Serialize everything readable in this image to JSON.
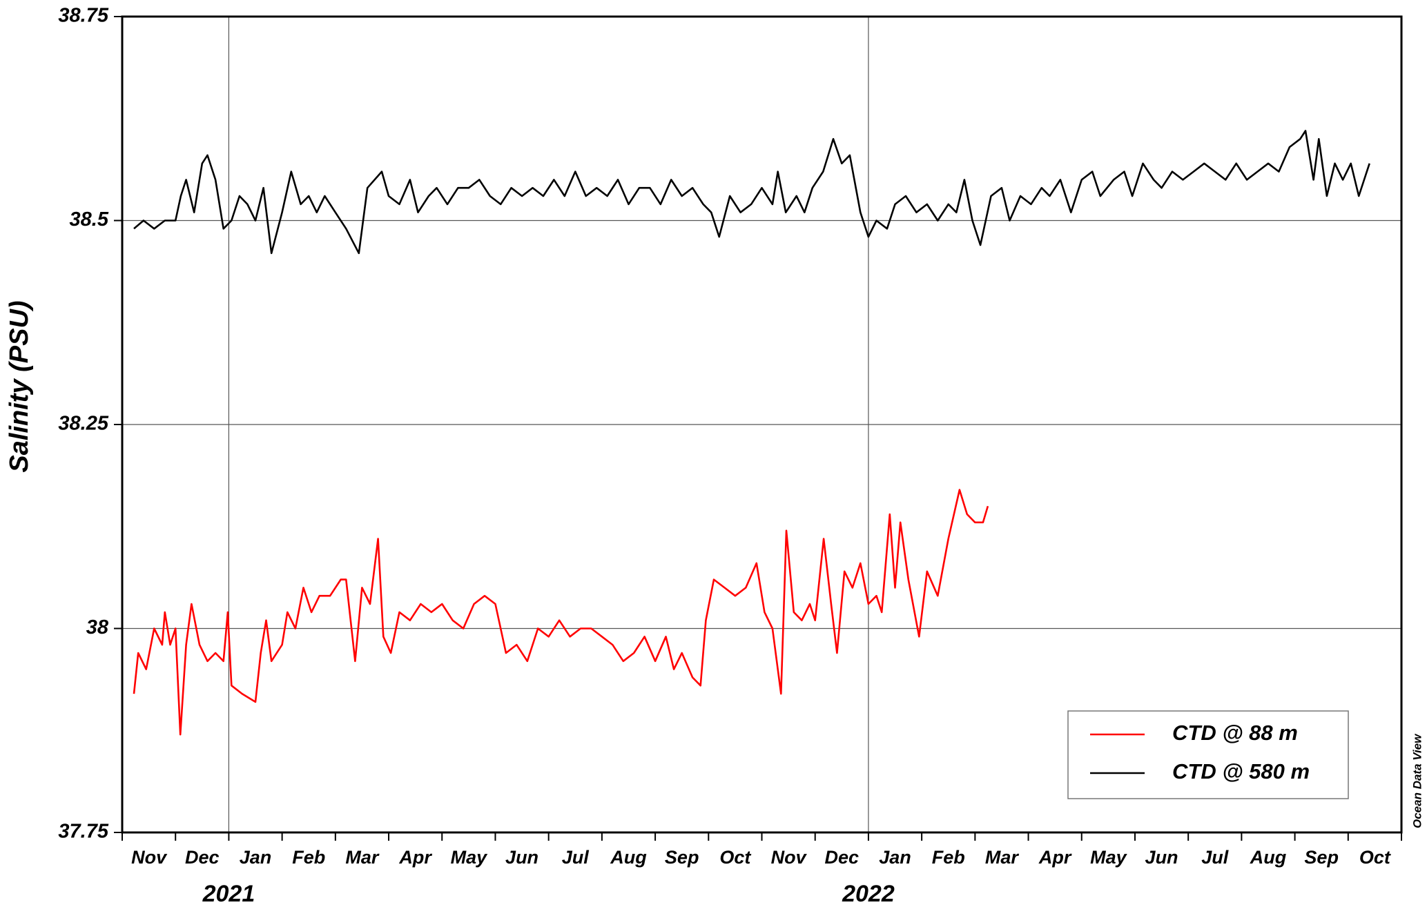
{
  "chart_data": {
    "type": "line",
    "y_label": "Salinity (PSU)",
    "watermark": "Ocean Data View",
    "xlim": [
      0,
      24
    ],
    "xticks": [
      {
        "value": 0.5,
        "label": "Nov"
      },
      {
        "value": 1.5,
        "label": "Dec"
      },
      {
        "value": 2.5,
        "label": "Jan"
      },
      {
        "value": 3.5,
        "label": "Feb"
      },
      {
        "value": 4.5,
        "label": "Mar"
      },
      {
        "value": 5.5,
        "label": "Apr"
      },
      {
        "value": 6.5,
        "label": "May"
      },
      {
        "value": 7.5,
        "label": "Jun"
      },
      {
        "value": 8.5,
        "label": "Jul"
      },
      {
        "value": 9.5,
        "label": "Aug"
      },
      {
        "value": 10.5,
        "label": "Sep"
      },
      {
        "value": 11.5,
        "label": "Oct"
      },
      {
        "value": 12.5,
        "label": "Nov"
      },
      {
        "value": 13.5,
        "label": "Dec"
      },
      {
        "value": 14.5,
        "label": "Jan"
      },
      {
        "value": 15.5,
        "label": "Feb"
      },
      {
        "value": 16.5,
        "label": "Mar"
      },
      {
        "value": 17.5,
        "label": "Apr"
      },
      {
        "value": 18.5,
        "label": "May"
      },
      {
        "value": 19.5,
        "label": "Jun"
      },
      {
        "value": 20.5,
        "label": "Jul"
      },
      {
        "value": 21.5,
        "label": "Aug"
      },
      {
        "value": 22.5,
        "label": "Sep"
      },
      {
        "value": 23.5,
        "label": "Oct"
      }
    ],
    "year_ticks": [
      {
        "value": 2,
        "label": "2021"
      },
      {
        "value": 14,
        "label": "2022"
      }
    ],
    "ylim": [
      37.75,
      38.75
    ],
    "yticks": [
      37.75,
      38,
      38.25,
      38.5,
      38.75
    ],
    "grid": true,
    "legend": "lower right",
    "series": [
      {
        "name": "CTD @ 88 m",
        "color": "#ff0000",
        "x": [
          0.22,
          0.3,
          0.45,
          0.6,
          0.75,
          0.8,
          0.9,
          1.0,
          1.09,
          1.2,
          1.3,
          1.45,
          1.6,
          1.75,
          1.9,
          1.98,
          2.05,
          2.25,
          2.5,
          2.6,
          2.7,
          2.8,
          3.0,
          3.1,
          3.25,
          3.4,
          3.55,
          3.7,
          3.9,
          4.1,
          4.2,
          4.37,
          4.5,
          4.65,
          4.8,
          4.9,
          5.04,
          5.2,
          5.4,
          5.6,
          5.8,
          6.0,
          6.2,
          6.4,
          6.6,
          6.8,
          7.0,
          7.2,
          7.4,
          7.6,
          7.8,
          8.0,
          8.2,
          8.4,
          8.6,
          8.8,
          9.0,
          9.2,
          9.4,
          9.6,
          9.8,
          10.0,
          10.2,
          10.35,
          10.5,
          10.7,
          10.85,
          10.95,
          11.1,
          11.3,
          11.5,
          11.7,
          11.9,
          12.05,
          12.2,
          12.36,
          12.46,
          12.6,
          12.75,
          12.9,
          13.0,
          13.16,
          13.3,
          13.41,
          13.55,
          13.7,
          13.85,
          14.0,
          14.15,
          14.25,
          14.4,
          14.5,
          14.6,
          14.75,
          14.95,
          15.1,
          15.3,
          15.5,
          15.71,
          15.85,
          16.0,
          16.15,
          16.24
        ],
        "values": [
          37.92,
          37.97,
          37.95,
          38.0,
          37.98,
          38.02,
          37.98,
          38.0,
          37.87,
          37.98,
          38.03,
          37.98,
          37.96,
          37.97,
          37.96,
          38.02,
          37.93,
          37.92,
          37.91,
          37.97,
          38.01,
          37.96,
          37.98,
          38.02,
          38.0,
          38.05,
          38.02,
          38.04,
          38.04,
          38.06,
          38.06,
          37.96,
          38.05,
          38.03,
          38.11,
          37.99,
          37.97,
          38.02,
          38.01,
          38.03,
          38.02,
          38.03,
          38.01,
          38.0,
          38.03,
          38.04,
          38.03,
          37.97,
          37.98,
          37.96,
          38.0,
          37.99,
          38.01,
          37.99,
          38.0,
          38.0,
          37.99,
          37.98,
          37.96,
          37.97,
          37.99,
          37.96,
          37.99,
          37.95,
          37.97,
          37.94,
          37.93,
          38.01,
          38.06,
          38.05,
          38.04,
          38.05,
          38.08,
          38.02,
          38.0,
          37.92,
          38.12,
          38.02,
          38.01,
          38.03,
          38.01,
          38.11,
          38.03,
          37.97,
          38.07,
          38.05,
          38.08,
          38.03,
          38.04,
          38.02,
          38.14,
          38.05,
          38.13,
          38.06,
          37.99,
          38.07,
          38.04,
          38.11,
          38.17,
          38.14,
          38.13,
          38.13,
          38.15
        ]
      },
      {
        "name": "CTD @ 580 m",
        "color": "#000000",
        "x": [
          0.22,
          0.4,
          0.6,
          0.8,
          1.0,
          1.1,
          1.2,
          1.35,
          1.5,
          1.6,
          1.75,
          1.9,
          2.05,
          2.2,
          2.35,
          2.5,
          2.65,
          2.8,
          3.0,
          3.17,
          3.35,
          3.5,
          3.65,
          3.8,
          4.0,
          4.2,
          4.44,
          4.6,
          4.87,
          5.0,
          5.2,
          5.4,
          5.55,
          5.75,
          5.9,
          6.1,
          6.3,
          6.5,
          6.7,
          6.9,
          7.1,
          7.3,
          7.5,
          7.7,
          7.9,
          8.1,
          8.3,
          8.5,
          8.7,
          8.9,
          9.1,
          9.3,
          9.5,
          9.7,
          9.9,
          10.1,
          10.3,
          10.5,
          10.7,
          10.9,
          11.05,
          11.2,
          11.4,
          11.6,
          11.8,
          12.0,
          12.2,
          12.3,
          12.45,
          12.65,
          12.8,
          12.95,
          13.15,
          13.34,
          13.5,
          13.65,
          13.85,
          14.0,
          14.15,
          14.35,
          14.5,
          14.7,
          14.9,
          15.1,
          15.3,
          15.5,
          15.65,
          15.8,
          15.95,
          16.1,
          16.3,
          16.5,
          16.65,
          16.85,
          17.05,
          17.25,
          17.4,
          17.6,
          17.8,
          18.0,
          18.2,
          18.35,
          18.6,
          18.8,
          18.95,
          19.15,
          19.35,
          19.5,
          19.7,
          19.9,
          20.1,
          20.3,
          20.5,
          20.7,
          20.9,
          21.1,
          21.3,
          21.5,
          21.7,
          21.9,
          22.1,
          22.2,
          22.35,
          22.45,
          22.6,
          22.75,
          22.9,
          23.05,
          23.2,
          23.4
        ],
        "values": [
          38.49,
          38.5,
          38.49,
          38.5,
          38.5,
          38.53,
          38.55,
          38.51,
          38.57,
          38.58,
          38.55,
          38.49,
          38.5,
          38.53,
          38.52,
          38.5,
          38.54,
          38.46,
          38.51,
          38.56,
          38.52,
          38.53,
          38.51,
          38.53,
          38.51,
          38.49,
          38.46,
          38.54,
          38.56,
          38.53,
          38.52,
          38.55,
          38.51,
          38.53,
          38.54,
          38.52,
          38.54,
          38.54,
          38.55,
          38.53,
          38.52,
          38.54,
          38.53,
          38.54,
          38.53,
          38.55,
          38.53,
          38.56,
          38.53,
          38.54,
          38.53,
          38.55,
          38.52,
          38.54,
          38.54,
          38.52,
          38.55,
          38.53,
          38.54,
          38.52,
          38.51,
          38.48,
          38.53,
          38.51,
          38.52,
          38.54,
          38.52,
          38.56,
          38.51,
          38.53,
          38.51,
          38.54,
          38.56,
          38.6,
          38.57,
          38.58,
          38.51,
          38.48,
          38.5,
          38.49,
          38.52,
          38.53,
          38.51,
          38.52,
          38.5,
          38.52,
          38.51,
          38.55,
          38.5,
          38.47,
          38.53,
          38.54,
          38.5,
          38.53,
          38.52,
          38.54,
          38.53,
          38.55,
          38.51,
          38.55,
          38.56,
          38.53,
          38.55,
          38.56,
          38.53,
          38.57,
          38.55,
          38.54,
          38.56,
          38.55,
          38.56,
          38.57,
          38.56,
          38.55,
          38.57,
          38.55,
          38.56,
          38.57,
          38.56,
          38.59,
          38.6,
          38.61,
          38.55,
          38.6,
          38.53,
          38.57,
          38.55,
          38.57,
          38.53,
          38.57
        ]
      }
    ]
  }
}
